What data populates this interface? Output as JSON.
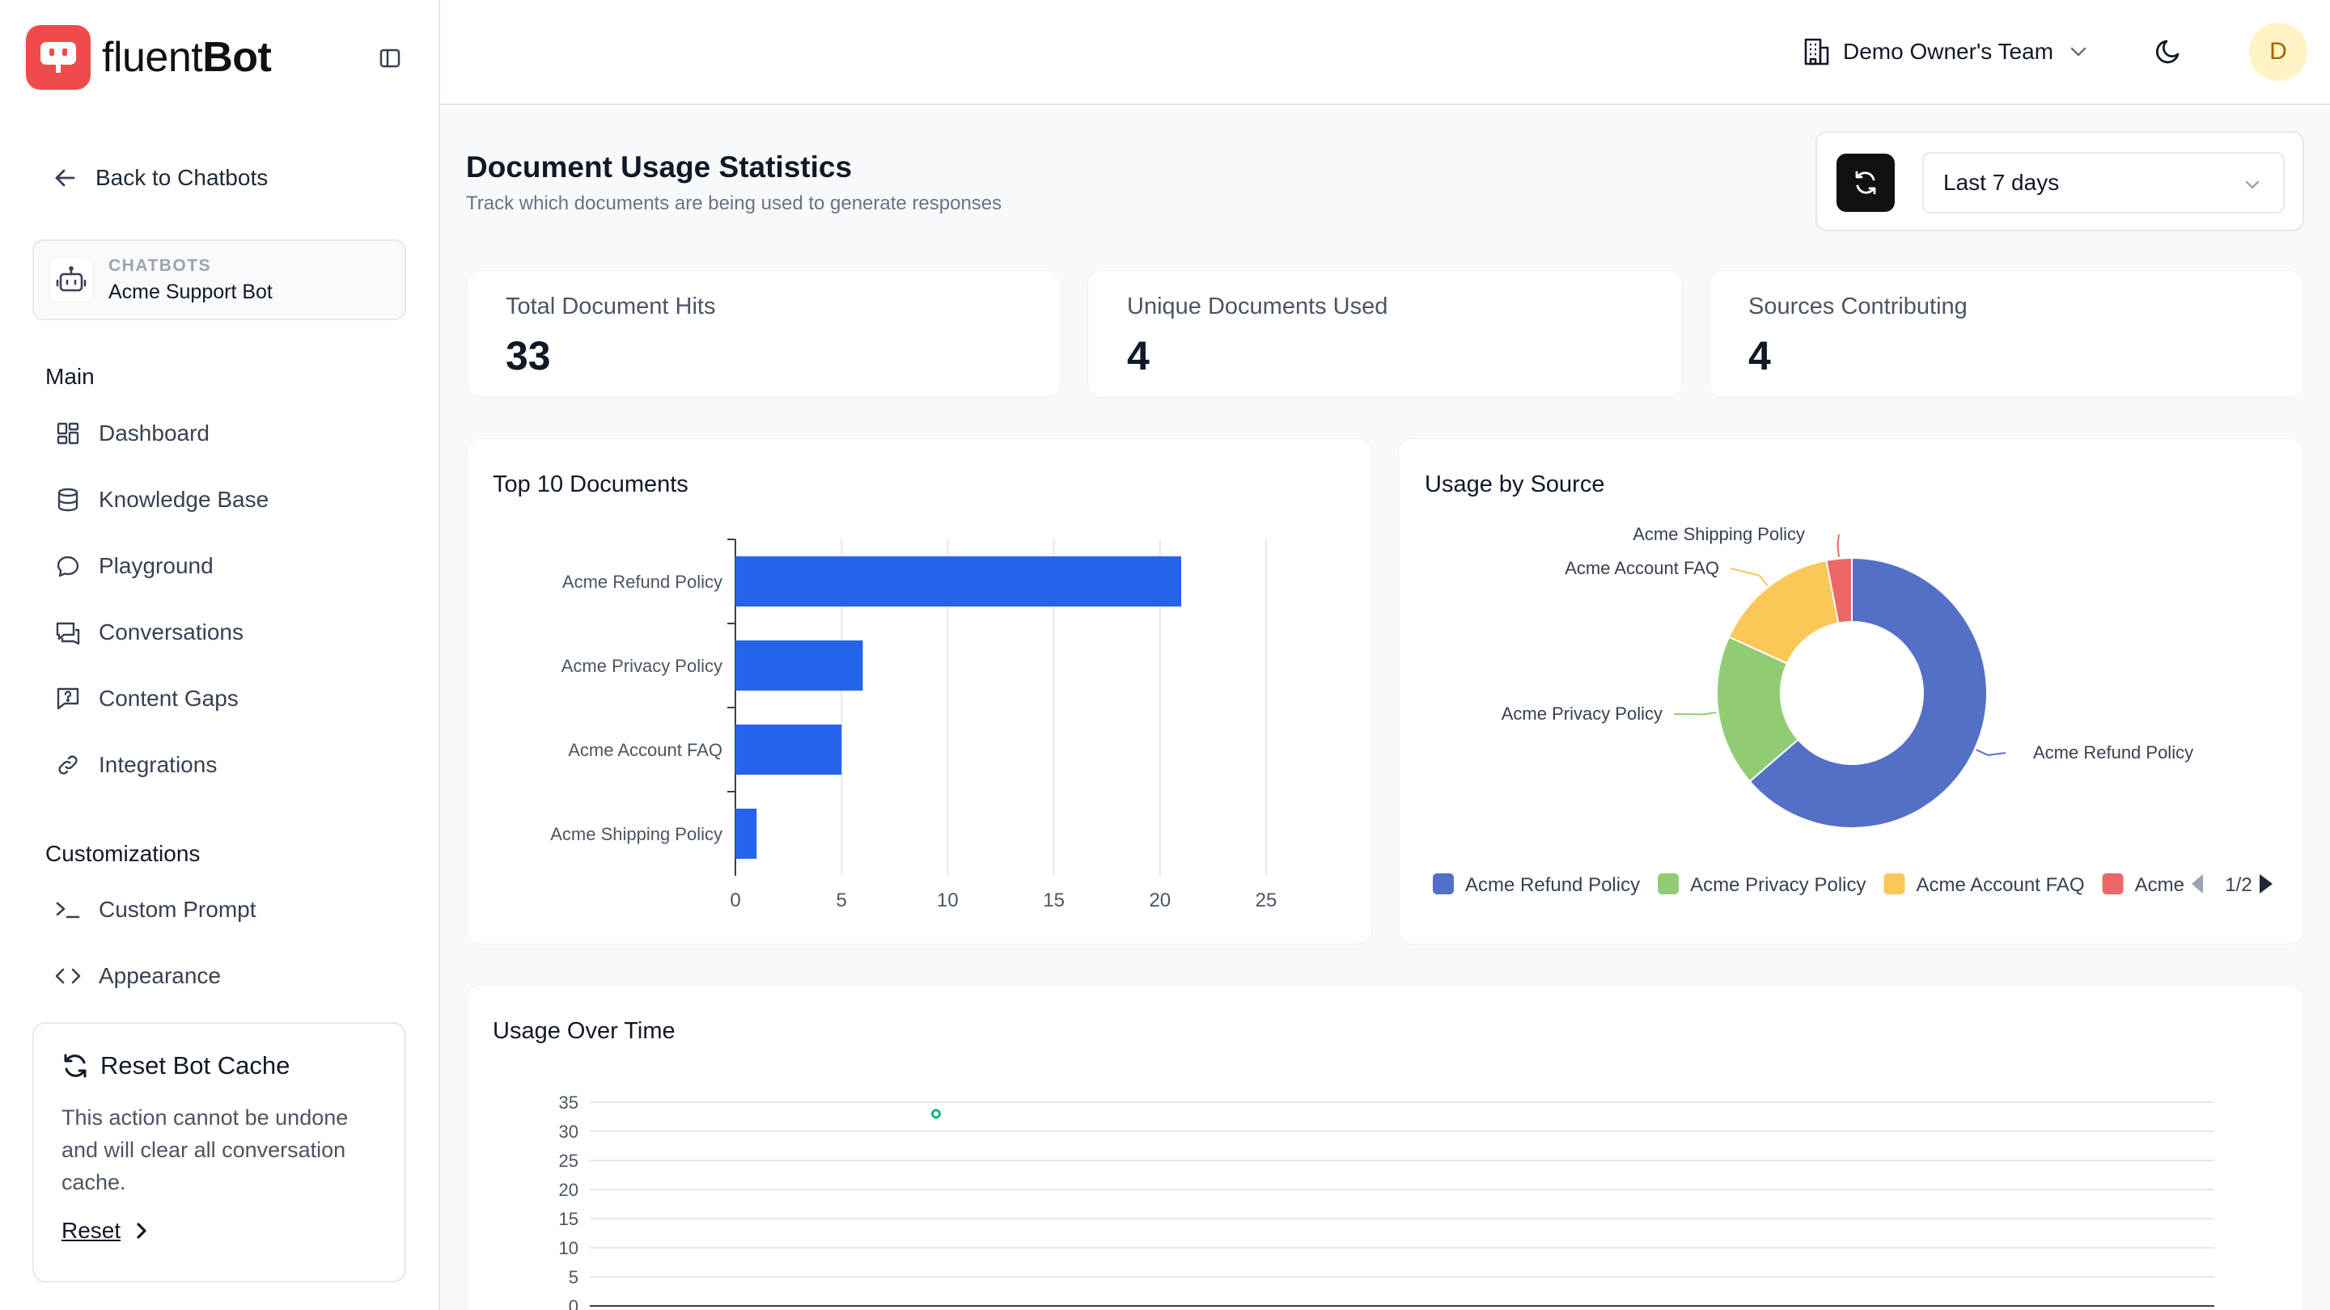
{
  "brand": {
    "name_light": "fluent",
    "name_bold": "Bot"
  },
  "sidebar": {
    "back_label": "Back to Chatbots",
    "bot_kicker": "CHATBOTS",
    "bot_name": "Acme Support Bot",
    "main_title": "Main",
    "main_items": [
      {
        "label": "Dashboard",
        "icon": "dashboard-icon"
      },
      {
        "label": "Knowledge Base",
        "icon": "database-icon"
      },
      {
        "label": "Playground",
        "icon": "chat-bubble-icon"
      },
      {
        "label": "Conversations",
        "icon": "conversations-icon"
      },
      {
        "label": "Content Gaps",
        "icon": "question-message-icon"
      },
      {
        "label": "Integrations",
        "icon": "link-icon"
      }
    ],
    "custom_title": "Customizations",
    "custom_items": [
      {
        "label": "Custom Prompt",
        "icon": "terminal-icon"
      },
      {
        "label": "Appearance",
        "icon": "code-icon"
      }
    ],
    "reset_card": {
      "title": "Reset Bot Cache",
      "description": "This action cannot be undone and will clear all conversation cache.",
      "link_label": "Reset"
    }
  },
  "header": {
    "team_name": "Demo Owner's Team",
    "avatar_initial": "D"
  },
  "page": {
    "title": "Document Usage Statistics",
    "subtitle": "Track which documents are being used to generate responses",
    "range_value": "Last 7 days"
  },
  "stats": [
    {
      "label": "Total Document Hits",
      "value": "33"
    },
    {
      "label": "Unique Documents Used",
      "value": "4"
    },
    {
      "label": "Sources Contributing",
      "value": "4"
    }
  ],
  "panels": {
    "top_docs_title": "Top 10 Documents",
    "by_source_title": "Usage by Source",
    "over_time_title": "Usage Over Time",
    "legend_page": "1/2"
  },
  "colors": {
    "accent": "#ef4b4b",
    "bar": "#2563eb",
    "line_point": "#10b981"
  },
  "chart_data": [
    {
      "type": "bar",
      "orientation": "horizontal",
      "title": "Top 10 Documents",
      "categories": [
        "Acme Refund Policy",
        "Acme Privacy Policy",
        "Acme Account FAQ",
        "Acme Shipping Policy"
      ],
      "values": [
        21,
        6,
        5,
        1
      ],
      "xlim": [
        0,
        25
      ],
      "xticks": [
        0,
        5,
        10,
        15,
        20,
        25
      ],
      "grid": true
    },
    {
      "type": "pie",
      "donut": true,
      "title": "Usage by Source",
      "labels": [
        "Acme Refund Policy",
        "Acme Privacy Policy",
        "Acme Account FAQ",
        "Acme Shipping Policy"
      ],
      "values": [
        21,
        6,
        5,
        1
      ],
      "colors": [
        "#5470c6",
        "#91cc75",
        "#fac858",
        "#ee6666"
      ],
      "legend": "bottom",
      "legend_labels": [
        "Acme Refund Policy",
        "Acme Privacy Policy",
        "Acme Account FAQ",
        "Acme"
      ]
    },
    {
      "type": "line",
      "title": "Usage Over Time",
      "ylim": [
        0,
        35
      ],
      "yticks": [
        0,
        5,
        10,
        15,
        20,
        25,
        30,
        35
      ],
      "series": [
        {
          "values": [
            33
          ]
        }
      ],
      "grid": true
    }
  ]
}
